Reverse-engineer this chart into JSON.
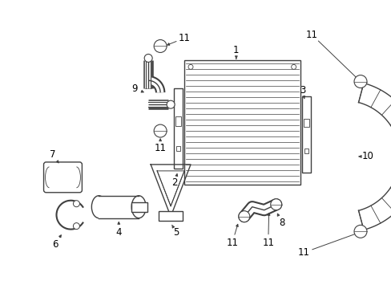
{
  "bg_color": "#ffffff",
  "line_color": "#404040",
  "text_color": "#000000",
  "font_size": 8.5,
  "figsize": [
    4.89,
    3.6
  ],
  "dpi": 100
}
